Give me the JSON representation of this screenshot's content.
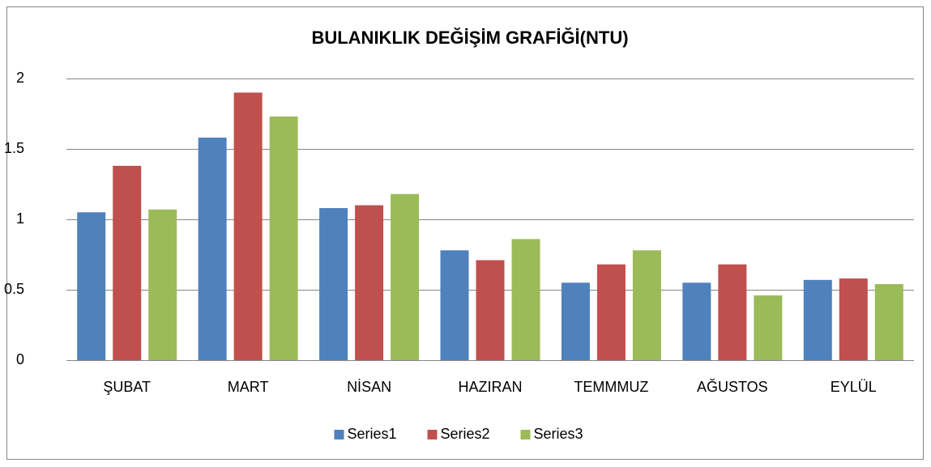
{
  "chart_data": {
    "type": "bar",
    "title": "BULANIKLIK DEĞİŞİM GRAFİĞİ(NTU)",
    "categories": [
      "ŞUBAT",
      "MART",
      "NİSAN",
      "HAZIRAN",
      "TEMMMUZ",
      "AĞUSTOS",
      "EYLÜL"
    ],
    "series": [
      {
        "name": "Series1",
        "color": "#4f81bd",
        "values": [
          1.05,
          1.58,
          1.08,
          0.78,
          0.55,
          0.55,
          0.57
        ]
      },
      {
        "name": "Series2",
        "color": "#c0504d",
        "values": [
          1.38,
          1.9,
          1.1,
          0.71,
          0.68,
          0.68,
          0.58
        ]
      },
      {
        "name": "Series3",
        "color": "#9bbb59",
        "values": [
          1.07,
          1.73,
          1.18,
          0.86,
          0.78,
          0.46,
          0.54
        ]
      }
    ],
    "ylim": [
      0,
      2
    ],
    "yticks": [
      0,
      0.5,
      1,
      1.5,
      2
    ],
    "grid": true,
    "legend": "bottom"
  }
}
